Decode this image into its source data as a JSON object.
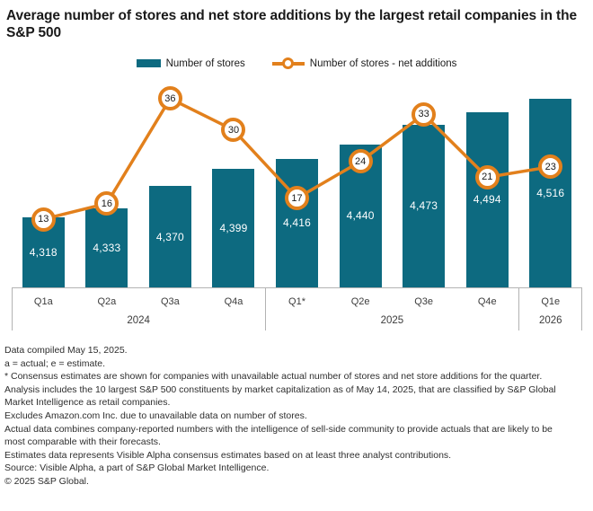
{
  "title": "Average number of stores and net store additions by the largest retail companies in the S&P 500",
  "legend": {
    "items": [
      {
        "label": "Number of stores",
        "type": "bar",
        "color": "#0D6A80"
      },
      {
        "label": "Number of stores - net additions",
        "type": "line",
        "color": "#E2801C"
      }
    ]
  },
  "colors": {
    "bar": "#0D6A80",
    "line": "#E2801C",
    "axis": "#b3b3b3",
    "bar_value_text": "#ffffff"
  },
  "chart_data": {
    "type": "bar+line",
    "categories": [
      "Q1a",
      "Q2a",
      "Q3a",
      "Q4a",
      "Q1*",
      "Q2e",
      "Q3e",
      "Q4e",
      "Q1e"
    ],
    "year_groups": [
      {
        "label": "2024",
        "cols": 4
      },
      {
        "label": "2025",
        "cols": 4
      },
      {
        "label": "2026",
        "cols": 1
      }
    ],
    "series": [
      {
        "name": "Number of stores",
        "type": "bar",
        "axis": "left",
        "values": [
          4318,
          4333,
          4370,
          4399,
          4416,
          4440,
          4473,
          4494,
          4516
        ]
      },
      {
        "name": "Number of stores - net additions",
        "type": "line",
        "axis": "right",
        "values": [
          13,
          16,
          36,
          30,
          17,
          24,
          33,
          21,
          23
        ]
      }
    ],
    "ylim_left": [
      4200,
      4560
    ],
    "ylim_right": [
      0,
      40
    ],
    "grid": false,
    "legend_position": "top",
    "value_labels": "on"
  },
  "footnotes": [
    "Data compiled May 15, 2025.",
    "a = actual; e = estimate.",
    "* Consensus estimates are shown for companies with unavailable actual number of stores and net store additions for the quarter.",
    "Analysis includes the 10 largest S&P 500 constituents by market capitalization as of May 14, 2025, that are classified by S&P Global Market Intelligence as retail companies.",
    "Excludes Amazon.com Inc. due to unavailable data on number of stores.",
    "Actual data combines company-reported numbers with the intelligence of sell-side community to provide actuals that are likely to be most comparable with their forecasts.",
    "Estimates data represents Visible Alpha consensus estimates based on at least three analyst contributions.",
    "Source: Visible Alpha, a part of S&P Global Market Intelligence.",
    "© 2025 S&P Global."
  ]
}
